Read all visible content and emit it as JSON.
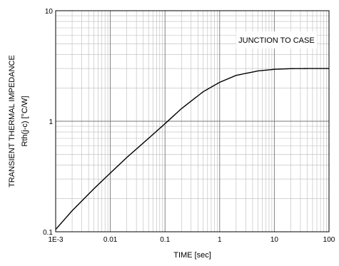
{
  "chart_data": {
    "type": "line",
    "title": "",
    "xlabel": "TIME [sec]",
    "ylabel_line1": "TRANSIENT THERMAL IMPEDANCE",
    "ylabel_line2": "Rth(j-c) [°C/W]",
    "x_scale": "log",
    "y_scale": "log",
    "xlim": [
      0.001,
      100
    ],
    "ylim": [
      0.1,
      10
    ],
    "x_ticks": [
      {
        "value": 0.001,
        "label": "1E-3"
      },
      {
        "value": 0.01,
        "label": "0.01"
      },
      {
        "value": 0.1,
        "label": "0.1"
      },
      {
        "value": 1,
        "label": "1"
      },
      {
        "value": 10,
        "label": "10"
      },
      {
        "value": 100,
        "label": "100"
      }
    ],
    "y_ticks": [
      {
        "value": 0.1,
        "label": "0.1"
      },
      {
        "value": 1,
        "label": "1"
      },
      {
        "value": 10,
        "label": "10"
      }
    ],
    "grid": true,
    "annotation": "JUNCTION TO CASE",
    "annotation_position": "top-right",
    "series": [
      {
        "x": [
          0.001,
          0.002,
          0.005,
          0.01,
          0.02,
          0.05,
          0.1,
          0.2,
          0.5,
          1,
          2,
          5,
          10,
          20,
          50,
          100
        ],
        "y": [
          0.105,
          0.155,
          0.245,
          0.34,
          0.47,
          0.7,
          0.95,
          1.3,
          1.85,
          2.25,
          2.6,
          2.85,
          2.95,
          2.99,
          3.0,
          3.0
        ],
        "color": "#000000"
      }
    ]
  }
}
